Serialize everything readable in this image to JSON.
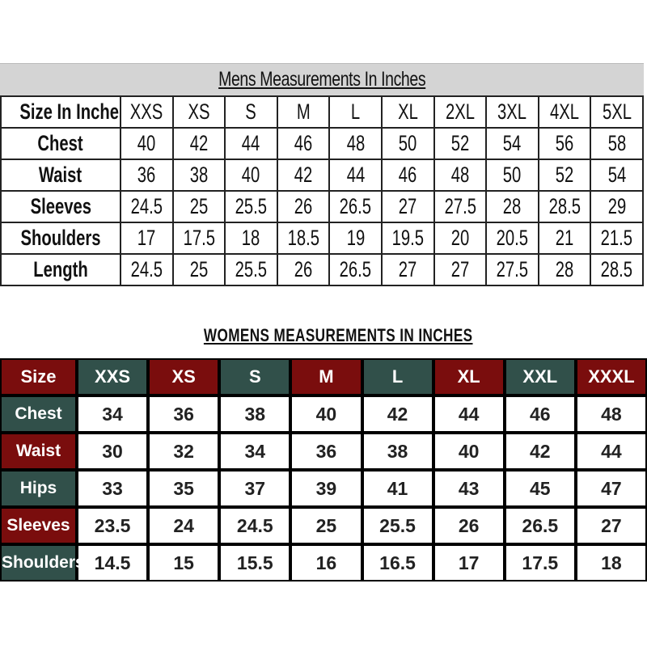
{
  "mens": {
    "title": "Mens Measurements In Inches",
    "header_label": "Size In Inches",
    "sizes": [
      "XXS",
      "XS",
      "S",
      "M",
      "L",
      "XL",
      "2XL",
      "3XL",
      "4XL",
      "5XL"
    ],
    "rows": [
      {
        "label": "Chest",
        "values": [
          "40",
          "42",
          "44",
          "46",
          "48",
          "50",
          "52",
          "54",
          "56",
          "58"
        ]
      },
      {
        "label": "Waist",
        "values": [
          "36",
          "38",
          "40",
          "42",
          "44",
          "46",
          "48",
          "50",
          "52",
          "54"
        ]
      },
      {
        "label": "Sleeves",
        "values": [
          "24.5",
          "25",
          "25.5",
          "26",
          "26.5",
          "27",
          "27.5",
          "28",
          "28.5",
          "29"
        ]
      },
      {
        "label": "Shoulders",
        "values": [
          "17",
          "17.5",
          "18",
          "18.5",
          "19",
          "19.5",
          "20",
          "20.5",
          "21",
          "21.5"
        ]
      },
      {
        "label": "Length",
        "values": [
          "24.5",
          "25",
          "25.5",
          "26",
          "26.5",
          "27",
          "27",
          "27.5",
          "28",
          "28.5"
        ]
      }
    ]
  },
  "womens": {
    "title": "WOMENS MEASUREMENTS IN INCHES",
    "header_label": "Size",
    "sizes": [
      "XXS",
      "XS",
      "S",
      "M",
      "L",
      "XL",
      "XXL",
      "XXXL"
    ],
    "rows": [
      {
        "label": "Chest",
        "values": [
          "34",
          "36",
          "38",
          "40",
          "42",
          "44",
          "46",
          "48"
        ]
      },
      {
        "label": "Waist",
        "values": [
          "30",
          "32",
          "34",
          "36",
          "38",
          "40",
          "42",
          "44"
        ]
      },
      {
        "label": "Hips",
        "values": [
          "33",
          "35",
          "37",
          "39",
          "41",
          "43",
          "45",
          "47"
        ]
      },
      {
        "label": "Sleeves",
        "values": [
          "23.5",
          "24",
          "24.5",
          "25",
          "25.5",
          "26",
          "26.5",
          "27"
        ]
      },
      {
        "label": "Shoulders",
        "values": [
          "14.5",
          "15",
          "15.5",
          "16",
          "16.5",
          "17",
          "17.5",
          "18"
        ]
      }
    ],
    "colors": {
      "red": "#7a0d0d",
      "green": "#31504a"
    }
  }
}
